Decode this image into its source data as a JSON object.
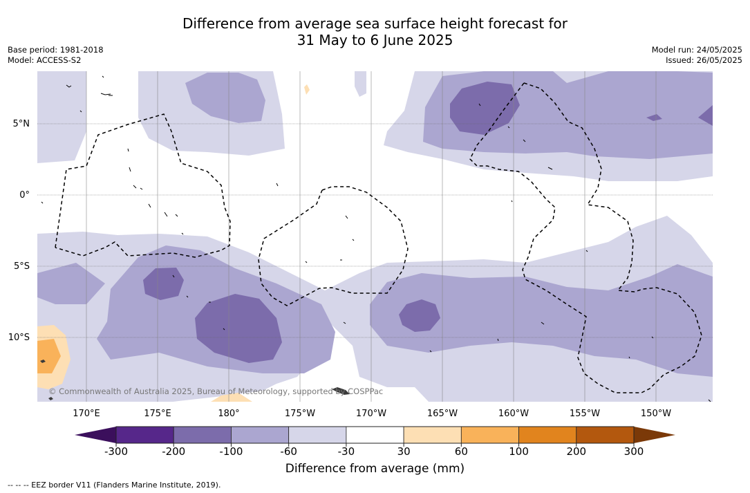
{
  "header": {
    "title_line1": "Difference from average sea surface height forecast for",
    "title_line2": "31 May to 6 June 2025",
    "base_period": "Base period: 1981-2018",
    "model": "Model: ACCESS-S2",
    "model_run": "Model run: 24/05/2025",
    "issued": "Issued: 26/05/2025"
  },
  "map": {
    "lat_labels": [
      "5°N",
      "0°",
      "5°S",
      "10°S"
    ],
    "lon_labels": [
      "170°E",
      "175°E",
      "180°",
      "175°W",
      "170°W",
      "165°W",
      "160°W",
      "155°W",
      "150°W"
    ],
    "copyright": "© Commonwealth of Australia 2025, Bureau of Meteorology, supported by COSPPac",
    "colors": {
      "neg300": "#3b0f5c",
      "neg200": "#56278a",
      "neg100": "#7c6cab",
      "neg60": "#aba6d0",
      "neg30": "#d6d6e9",
      "zero": "#ffffff",
      "pos30": "#fddfb4",
      "pos60": "#f9b25a",
      "pos100": "#e1841e",
      "pos200": "#b3580e",
      "pos300": "#7b3908"
    }
  },
  "colorbar": {
    "ticks": [
      "-300",
      "-200",
      "-100",
      "-60",
      "-30",
      "30",
      "60",
      "100",
      "200",
      "300"
    ],
    "title": "Difference from average (mm)"
  },
  "footnote": "-- -- -- EEZ border V11 (Flanders Marine Institute, 2019)."
}
